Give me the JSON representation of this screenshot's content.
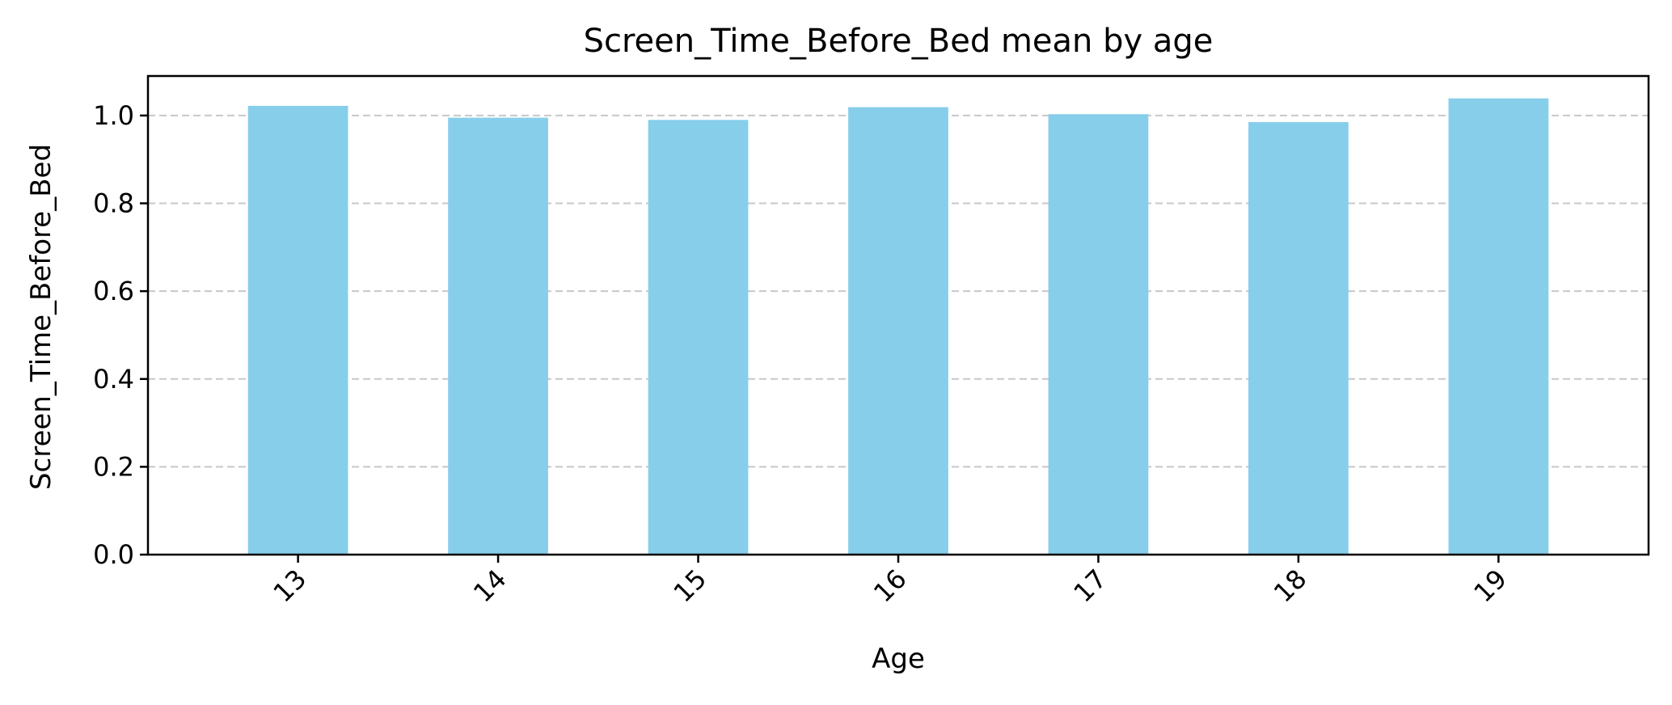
{
  "chart_data": {
    "type": "bar",
    "title": "Screen_Time_Before_Bed mean by age",
    "xlabel": "Age",
    "ylabel": "Screen_Time_Before_Bed",
    "categories": [
      "13",
      "14",
      "15",
      "16",
      "17",
      "18",
      "19"
    ],
    "values": [
      1.022,
      0.995,
      0.99,
      1.019,
      1.003,
      0.985,
      1.039
    ],
    "ylim": [
      0,
      1.09
    ],
    "yticks": [
      0.0,
      0.2,
      0.4,
      0.6,
      0.8,
      1.0
    ],
    "ytick_labels": [
      "0.0",
      "0.2",
      "0.4",
      "0.6",
      "0.8",
      "1.0"
    ],
    "grid": "horizontal-dashed",
    "legend": "none",
    "bar_color": "#87ceeb",
    "grid_color": "#c8c8c8",
    "axis_color": "#000000"
  }
}
